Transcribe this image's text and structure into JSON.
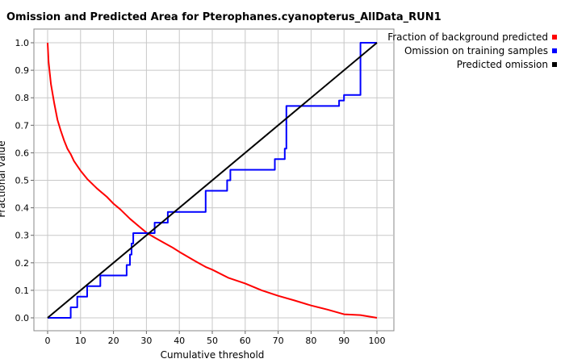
{
  "chart_data": {
    "type": "line",
    "title": "Omission and Predicted Area for Pterophanes.cyanopterus_AllData_RUN1",
    "xlabel": "Cumulative threshold",
    "ylabel": "Fractional value",
    "xlim": [
      0,
      100
    ],
    "ylim": [
      0,
      1
    ],
    "x_ticks": [
      "0",
      "10",
      "20",
      "30",
      "40",
      "50",
      "60",
      "70",
      "80",
      "90",
      "100"
    ],
    "y_ticks": [
      "0.0",
      "0.1",
      "0.2",
      "0.3",
      "0.4",
      "0.5",
      "0.6",
      "0.7",
      "0.8",
      "0.9",
      "1.0"
    ],
    "grid": true,
    "legend_position": "top-right",
    "series": [
      {
        "name": "Fraction of background predicted",
        "color": "#ff0000",
        "x": [
          0,
          0.3,
          1,
          2,
          3,
          4,
          5,
          6,
          7,
          8,
          10,
          12,
          15,
          18,
          20,
          22,
          25,
          28,
          30,
          32,
          35,
          38,
          40,
          45,
          48,
          50,
          55,
          60,
          65,
          70,
          75,
          80,
          85,
          90,
          95,
          100
        ],
        "y": [
          1.0,
          0.93,
          0.85,
          0.78,
          0.72,
          0.68,
          0.645,
          0.615,
          0.595,
          0.57,
          0.535,
          0.505,
          0.47,
          0.44,
          0.415,
          0.395,
          0.36,
          0.33,
          0.31,
          0.295,
          0.275,
          0.255,
          0.24,
          0.205,
          0.185,
          0.175,
          0.145,
          0.125,
          0.1,
          0.08,
          0.063,
          0.045,
          0.03,
          0.013,
          0.01,
          0.0
        ]
      },
      {
        "name": "Omission on training samples",
        "color": "#0000ff",
        "x": [
          0,
          7,
          7,
          9,
          9,
          12,
          12,
          16,
          16,
          24,
          24,
          25,
          25,
          25.5,
          25.5,
          26,
          26,
          32.5,
          32.5,
          36.5,
          36.5,
          48,
          48,
          54.5,
          54.5,
          55.5,
          55.5,
          69,
          69,
          72,
          72,
          72.5,
          72.5,
          88.5,
          88.5,
          90,
          90,
          95,
          95,
          100
        ],
        "y": [
          0,
          0,
          0.038,
          0.038,
          0.077,
          0.077,
          0.115,
          0.115,
          0.154,
          0.154,
          0.192,
          0.192,
          0.23,
          0.23,
          0.27,
          0.27,
          0.308,
          0.308,
          0.346,
          0.346,
          0.385,
          0.385,
          0.462,
          0.462,
          0.5,
          0.5,
          0.538,
          0.538,
          0.577,
          0.577,
          0.615,
          0.615,
          0.77,
          0.77,
          0.79,
          0.79,
          0.81,
          0.81,
          1.0,
          1.0
        ]
      },
      {
        "name": "Predicted omission",
        "color": "#000000",
        "x": [
          0,
          100
        ],
        "y": [
          0,
          1
        ]
      }
    ]
  }
}
